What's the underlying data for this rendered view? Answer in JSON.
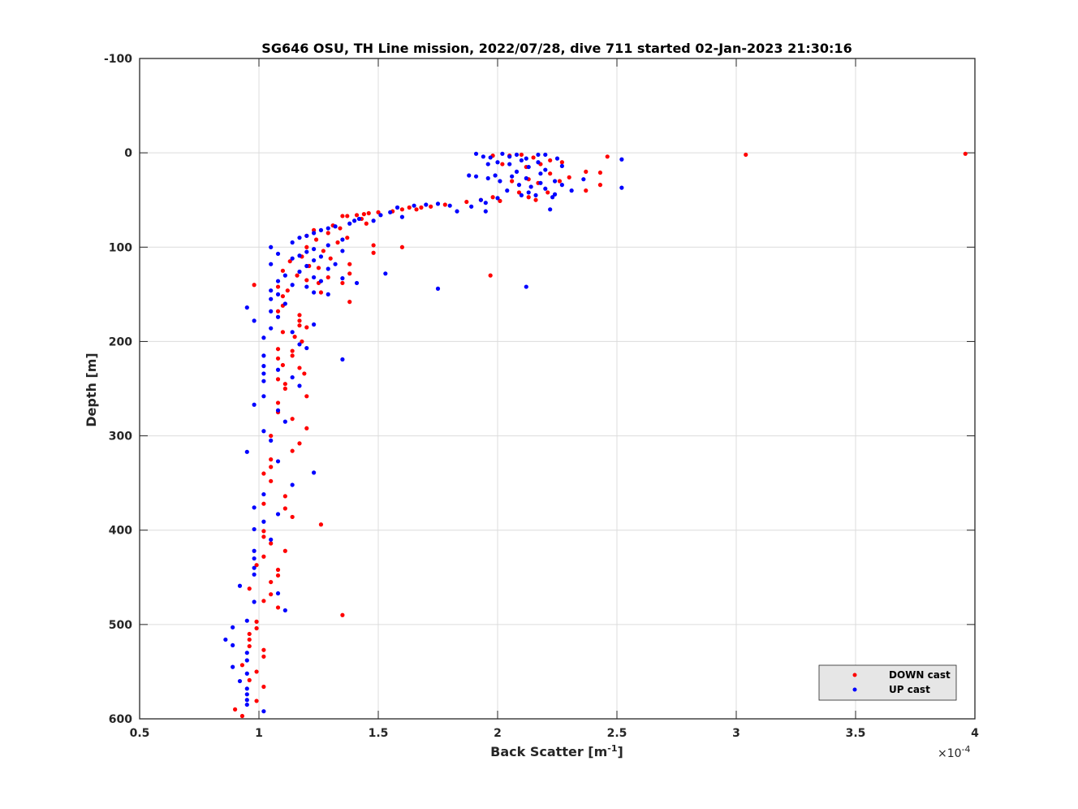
{
  "chart_data": {
    "type": "scatter",
    "title": "SG646 OSU, TH Line mission, 2022/07/28, dive 711 started 02-Jan-2023 21:30:16",
    "xlabel": "Back Scatter [m",
    "xlabel_sup": "-1",
    "xlabel_end": "]",
    "ylabel": "Depth [m]",
    "x_multiplier_label": "×10",
    "x_multiplier_exp": "-4",
    "xlim": [
      0.5,
      4
    ],
    "ylim": [
      -100,
      600
    ],
    "y_reversed": true,
    "grid": true,
    "x_ticks": [
      "0.5",
      "1",
      "1.5",
      "2",
      "2.5",
      "3",
      "3.5",
      "4"
    ],
    "x_tick_values": [
      0.5,
      1,
      1.5,
      2,
      2.5,
      3,
      3.5,
      4
    ],
    "y_ticks": [
      "-100",
      "0",
      "100",
      "200",
      "300",
      "400",
      "500",
      "600"
    ],
    "y_tick_values": [
      -100,
      0,
      100,
      200,
      300,
      400,
      500,
      600
    ],
    "legend_position": "bottom-right",
    "series": [
      {
        "name": "DOWN cast",
        "color": "#ff0000",
        "points": [
          [
            3.96,
            1
          ],
          [
            3.04,
            2
          ],
          [
            2.46,
            4
          ],
          [
            2.05,
            3
          ],
          [
            1.98,
            3
          ],
          [
            2.1,
            2
          ],
          [
            2.15,
            5
          ],
          [
            2.22,
            8
          ],
          [
            2.27,
            10
          ],
          [
            2.18,
            12
          ],
          [
            2.02,
            12
          ],
          [
            2.12,
            15
          ],
          [
            2.37,
            20
          ],
          [
            2.43,
            21
          ],
          [
            2.22,
            22
          ],
          [
            2.3,
            26
          ],
          [
            2.13,
            28
          ],
          [
            2.06,
            30
          ],
          [
            2.26,
            30
          ],
          [
            2.17,
            32
          ],
          [
            2.43,
            34
          ],
          [
            2.37,
            40
          ],
          [
            2.09,
            42
          ],
          [
            2.21,
            42
          ],
          [
            2.13,
            47
          ],
          [
            1.98,
            47
          ],
          [
            2.01,
            51
          ],
          [
            2.16,
            50
          ],
          [
            1.93,
            50
          ],
          [
            1.87,
            52
          ],
          [
            1.78,
            55
          ],
          [
            1.72,
            57
          ],
          [
            1.68,
            58
          ],
          [
            1.63,
            58
          ],
          [
            1.66,
            60
          ],
          [
            1.6,
            60
          ],
          [
            1.56,
            62
          ],
          [
            1.5,
            63
          ],
          [
            1.46,
            64
          ],
          [
            1.44,
            65
          ],
          [
            1.41,
            66
          ],
          [
            1.37,
            67
          ],
          [
            1.35,
            67
          ],
          [
            1.43,
            70
          ],
          [
            1.45,
            75
          ],
          [
            1.31,
            77
          ],
          [
            1.34,
            80
          ],
          [
            1.23,
            82
          ],
          [
            1.29,
            85
          ],
          [
            1.2,
            88
          ],
          [
            1.37,
            90
          ],
          [
            1.24,
            92
          ],
          [
            1.33,
            95
          ],
          [
            1.48,
            98
          ],
          [
            1.6,
            100
          ],
          [
            1.2,
            100
          ],
          [
            1.27,
            104
          ],
          [
            1.48,
            106
          ],
          [
            1.18,
            110
          ],
          [
            1.3,
            112
          ],
          [
            1.13,
            115
          ],
          [
            1.38,
            118
          ],
          [
            1.21,
            120
          ],
          [
            1.25,
            122
          ],
          [
            1.1,
            125
          ],
          [
            1.38,
            128
          ],
          [
            1.16,
            130
          ],
          [
            1.29,
            132
          ],
          [
            1.97,
            130
          ],
          [
            1.2,
            135
          ],
          [
            1.25,
            138
          ],
          [
            1.35,
            138
          ],
          [
            0.98,
            140
          ],
          [
            1.08,
            142
          ],
          [
            1.12,
            146
          ],
          [
            1.26,
            148
          ],
          [
            1.1,
            152
          ],
          [
            1.38,
            158
          ],
          [
            1.1,
            162
          ],
          [
            1.08,
            168
          ],
          [
            1.17,
            172
          ],
          [
            1.17,
            178
          ],
          [
            1.17,
            183
          ],
          [
            1.2,
            185
          ],
          [
            1.1,
            190
          ],
          [
            1.15,
            195
          ],
          [
            1.18,
            200
          ],
          [
            1.08,
            208
          ],
          [
            1.14,
            210
          ],
          [
            1.14,
            215
          ],
          [
            1.08,
            218
          ],
          [
            1.1,
            225
          ],
          [
            1.17,
            228
          ],
          [
            1.19,
            234
          ],
          [
            1.08,
            240
          ],
          [
            1.11,
            245
          ],
          [
            1.11,
            250
          ],
          [
            1.2,
            258
          ],
          [
            1.08,
            265
          ],
          [
            1.08,
            275
          ],
          [
            1.14,
            282
          ],
          [
            1.2,
            292
          ],
          [
            1.05,
            300
          ],
          [
            1.17,
            308
          ],
          [
            1.14,
            316
          ],
          [
            1.05,
            325
          ],
          [
            1.05,
            333
          ],
          [
            1.02,
            340
          ],
          [
            1.05,
            348
          ],
          [
            1.11,
            364
          ],
          [
            1.02,
            372
          ],
          [
            1.11,
            377
          ],
          [
            1.14,
            386
          ],
          [
            1.26,
            394
          ],
          [
            1.02,
            401
          ],
          [
            1.02,
            407
          ],
          [
            1.05,
            414
          ],
          [
            1.11,
            422
          ],
          [
            1.02,
            428
          ],
          [
            0.99,
            437
          ],
          [
            1.08,
            442
          ],
          [
            1.08,
            448
          ],
          [
            1.05,
            455
          ],
          [
            0.96,
            462
          ],
          [
            1.05,
            468
          ],
          [
            1.02,
            475
          ],
          [
            1.08,
            482
          ],
          [
            1.35,
            490
          ],
          [
            0.99,
            497
          ],
          [
            0.99,
            504
          ],
          [
            0.96,
            510
          ],
          [
            0.96,
            516
          ],
          [
            0.96,
            523
          ],
          [
            1.02,
            527
          ],
          [
            1.02,
            534
          ],
          [
            0.93,
            543
          ],
          [
            0.99,
            550
          ],
          [
            0.96,
            559
          ],
          [
            1.02,
            566
          ],
          [
            0.99,
            581
          ],
          [
            0.9,
            590
          ],
          [
            0.93,
            597
          ]
        ]
      },
      {
        "name": "UP cast",
        "color": "#0000ff",
        "points": [
          [
            1.91,
            1
          ],
          [
            2.02,
            1
          ],
          [
            2.08,
            2
          ],
          [
            2.17,
            2
          ],
          [
            2.2,
            2
          ],
          [
            1.94,
            4
          ],
          [
            2.05,
            4
          ],
          [
            1.97,
            5
          ],
          [
            2.12,
            6
          ],
          [
            2.25,
            6
          ],
          [
            2.52,
            7
          ],
          [
            2.1,
            8
          ],
          [
            2.0,
            10
          ],
          [
            2.17,
            10
          ],
          [
            2.27,
            14
          ],
          [
            1.96,
            12
          ],
          [
            2.05,
            12
          ],
          [
            2.13,
            15
          ],
          [
            2.2,
            18
          ],
          [
            2.08,
            20
          ],
          [
            2.18,
            22
          ],
          [
            1.99,
            24
          ],
          [
            1.88,
            24
          ],
          [
            1.91,
            25
          ],
          [
            2.06,
            25
          ],
          [
            1.96,
            27
          ],
          [
            2.12,
            27
          ],
          [
            2.36,
            28
          ],
          [
            2.24,
            30
          ],
          [
            2.01,
            30
          ],
          [
            2.18,
            32
          ],
          [
            2.09,
            34
          ],
          [
            2.27,
            34
          ],
          [
            2.14,
            36
          ],
          [
            2.52,
            37
          ],
          [
            2.2,
            38
          ],
          [
            2.31,
            40
          ],
          [
            2.04,
            40
          ],
          [
            2.13,
            42
          ],
          [
            2.24,
            44
          ],
          [
            2.16,
            45
          ],
          [
            2.1,
            45
          ],
          [
            2.0,
            48
          ],
          [
            2.23,
            47
          ],
          [
            1.93,
            50
          ],
          [
            1.95,
            53
          ],
          [
            1.89,
            57
          ],
          [
            2.22,
            60
          ],
          [
            1.95,
            62
          ],
          [
            1.83,
            62
          ],
          [
            1.8,
            56
          ],
          [
            1.75,
            54
          ],
          [
            1.7,
            55
          ],
          [
            1.65,
            56
          ],
          [
            1.58,
            58
          ],
          [
            1.55,
            63
          ],
          [
            1.6,
            68
          ],
          [
            1.51,
            66
          ],
          [
            1.42,
            70
          ],
          [
            1.48,
            72
          ],
          [
            1.4,
            72
          ],
          [
            1.38,
            75
          ],
          [
            1.32,
            78
          ],
          [
            1.29,
            80
          ],
          [
            1.26,
            82
          ],
          [
            1.23,
            85
          ],
          [
            1.2,
            88
          ],
          [
            1.17,
            90
          ],
          [
            1.35,
            92
          ],
          [
            1.14,
            95
          ],
          [
            1.29,
            98
          ],
          [
            1.05,
            100
          ],
          [
            1.23,
            102
          ],
          [
            1.35,
            104
          ],
          [
            1.2,
            105
          ],
          [
            1.08,
            107
          ],
          [
            1.17,
            109
          ],
          [
            1.26,
            110
          ],
          [
            1.14,
            112
          ],
          [
            1.23,
            114
          ],
          [
            1.05,
            118
          ],
          [
            1.32,
            118
          ],
          [
            1.2,
            120
          ],
          [
            1.29,
            123
          ],
          [
            1.17,
            126
          ],
          [
            1.53,
            128
          ],
          [
            1.11,
            130
          ],
          [
            1.23,
            132
          ],
          [
            1.35,
            133
          ],
          [
            1.08,
            136
          ],
          [
            1.26,
            136
          ],
          [
            1.41,
            138
          ],
          [
            1.14,
            140
          ],
          [
            1.2,
            142
          ],
          [
            2.12,
            142
          ],
          [
            1.75,
            144
          ],
          [
            1.05,
            146
          ],
          [
            1.23,
            148
          ],
          [
            1.08,
            150
          ],
          [
            1.29,
            150
          ],
          [
            1.05,
            155
          ],
          [
            1.11,
            160
          ],
          [
            0.95,
            164
          ],
          [
            1.05,
            168
          ],
          [
            1.08,
            174
          ],
          [
            0.98,
            178
          ],
          [
            1.23,
            182
          ],
          [
            1.05,
            186
          ],
          [
            1.14,
            190
          ],
          [
            1.02,
            196
          ],
          [
            1.17,
            203
          ],
          [
            1.2,
            207
          ],
          [
            1.02,
            215
          ],
          [
            1.35,
            219
          ],
          [
            1.02,
            226
          ],
          [
            1.08,
            230
          ],
          [
            1.02,
            234
          ],
          [
            1.14,
            238
          ],
          [
            1.02,
            242
          ],
          [
            1.17,
            247
          ],
          [
            1.02,
            258
          ],
          [
            0.98,
            267
          ],
          [
            1.08,
            273
          ],
          [
            1.11,
            285
          ],
          [
            1.02,
            295
          ],
          [
            1.05,
            305
          ],
          [
            0.95,
            317
          ],
          [
            1.08,
            327
          ],
          [
            1.23,
            339
          ],
          [
            1.14,
            352
          ],
          [
            1.02,
            362
          ],
          [
            0.98,
            376
          ],
          [
            1.08,
            383
          ],
          [
            1.02,
            391
          ],
          [
            0.98,
            399
          ],
          [
            1.05,
            410
          ],
          [
            0.98,
            422
          ],
          [
            0.98,
            430
          ],
          [
            0.98,
            440
          ],
          [
            0.98,
            447
          ],
          [
            0.92,
            459
          ],
          [
            1.08,
            467
          ],
          [
            0.98,
            476
          ],
          [
            1.11,
            485
          ],
          [
            0.95,
            496
          ],
          [
            0.89,
            503
          ],
          [
            0.86,
            516
          ],
          [
            0.89,
            522
          ],
          [
            0.95,
            530
          ],
          [
            0.95,
            538
          ],
          [
            0.89,
            545
          ],
          [
            0.95,
            552
          ],
          [
            0.92,
            560
          ],
          [
            0.95,
            568
          ],
          [
            0.95,
            574
          ],
          [
            0.95,
            580
          ],
          [
            0.95,
            585
          ],
          [
            1.02,
            592
          ]
        ]
      }
    ]
  }
}
